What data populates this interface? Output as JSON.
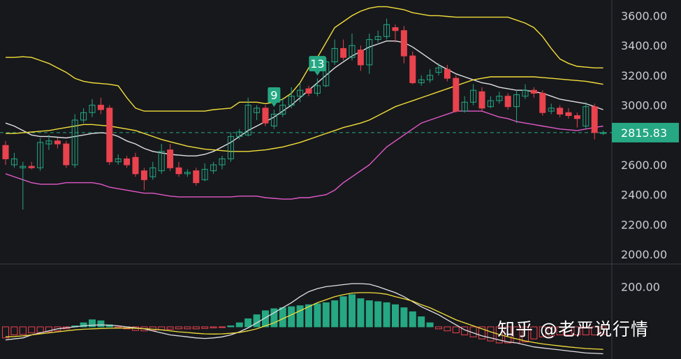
{
  "chart_data": {
    "type": "candlestick",
    "price_axis": {
      "ticks": [
        2000,
        2200,
        2400,
        2600,
        2800,
        3000,
        3200,
        3400,
        3600
      ],
      "tick_labels": [
        "2000.00",
        "2200.00",
        "2400.00",
        "2600.00",
        "2800.00",
        "3000.00",
        "3200.00",
        "3400.00",
        "3600.00"
      ],
      "range": [
        1935,
        3705
      ]
    },
    "macd_axis": {
      "tick_label": "200.00",
      "tick_value": 200,
      "range": [
        -160,
        250
      ]
    },
    "last_price": {
      "value": 2815.83,
      "label": "2815.83"
    },
    "markers": [
      {
        "label": "9",
        "bar": 31
      },
      {
        "label": "13",
        "bar": 36
      }
    ],
    "candles": [
      [
        2730,
        2640,
        2760,
        2600
      ],
      [
        2600,
        2640,
        2680,
        2580
      ],
      [
        2580,
        2590,
        2620,
        2300
      ],
      [
        2590,
        2580,
        2620,
        2570
      ],
      [
        2580,
        2750,
        2780,
        2560
      ],
      [
        2740,
        2760,
        2800,
        2700
      ],
      [
        2760,
        2740,
        2780,
        2710
      ],
      [
        2740,
        2600,
        2760,
        2580
      ],
      [
        2600,
        2900,
        2940,
        2580
      ],
      [
        2900,
        2950,
        2980,
        2880
      ],
      [
        2950,
        3000,
        3040,
        2920
      ],
      [
        3000,
        2970,
        3050,
        2940
      ],
      [
        2980,
        2620,
        3000,
        2600
      ],
      [
        2620,
        2640,
        2670,
        2600
      ],
      [
        2640,
        2600,
        2660,
        2580
      ],
      [
        2650,
        2540,
        2680,
        2520
      ],
      [
        2560,
        2500,
        2580,
        2430
      ],
      [
        2520,
        2580,
        2620,
        2500
      ],
      [
        2560,
        2690,
        2740,
        2540
      ],
      [
        2700,
        2580,
        2740,
        2560
      ],
      [
        2580,
        2540,
        2620,
        2520
      ],
      [
        2540,
        2550,
        2570,
        2520
      ],
      [
        2560,
        2480,
        2580,
        2460
      ],
      [
        2500,
        2570,
        2610,
        2490
      ],
      [
        2560,
        2600,
        2620,
        2540
      ],
      [
        2600,
        2640,
        2660,
        2570
      ],
      [
        2640,
        2790,
        2820,
        2620
      ],
      [
        2790,
        2820,
        2840,
        2770
      ],
      [
        2800,
        3000,
        3050,
        2790
      ],
      [
        2950,
        2980,
        3000,
        2900
      ],
      [
        2980,
        2880,
        3000,
        2860
      ],
      [
        2860,
        2940,
        2970,
        2840
      ],
      [
        2940,
        3000,
        3050,
        2920
      ],
      [
        3000,
        3060,
        3120,
        2980
      ],
      [
        3060,
        3100,
        3150,
        3020
      ],
      [
        3110,
        3080,
        3130,
        3060
      ],
      [
        3080,
        3130,
        3180,
        3060
      ],
      [
        3130,
        3290,
        3320,
        3120
      ],
      [
        3290,
        3380,
        3440,
        3270
      ],
      [
        3380,
        3320,
        3440,
        3300
      ],
      [
        3320,
        3400,
        3480,
        3300
      ],
      [
        3370,
        3270,
        3400,
        3230
      ],
      [
        3270,
        3440,
        3480,
        3210
      ],
      [
        3440,
        3460,
        3500,
        3420
      ],
      [
        3460,
        3540,
        3580,
        3440
      ],
      [
        3520,
        3500,
        3540,
        3420
      ],
      [
        3500,
        3330,
        3530,
        3280
      ],
      [
        3330,
        3150,
        3360,
        3140
      ],
      [
        3150,
        3170,
        3200,
        3130
      ],
      [
        3170,
        3200,
        3240,
        3150
      ],
      [
        3220,
        3250,
        3280,
        3200
      ],
      [
        3240,
        3180,
        3270,
        3160
      ],
      [
        3180,
        2960,
        3200,
        2950
      ],
      [
        2960,
        3020,
        3060,
        2950
      ],
      [
        3020,
        3100,
        3140,
        3000
      ],
      [
        3090,
        2980,
        3120,
        2960
      ],
      [
        2990,
        3030,
        3060,
        2980
      ],
      [
        3030,
        3060,
        3090,
        3010
      ],
      [
        3060,
        2990,
        3080,
        2970
      ],
      [
        2990,
        3070,
        3100,
        2880
      ],
      [
        3060,
        3100,
        3140,
        3040
      ],
      [
        3100,
        3080,
        3120,
        3050
      ],
      [
        3080,
        2950,
        3100,
        2930
      ],
      [
        2960,
        2980,
        3010,
        2940
      ],
      [
        2980,
        2940,
        3000,
        2920
      ],
      [
        2950,
        2930,
        2980,
        2910
      ],
      [
        2930,
        2910,
        2950,
        2850
      ],
      [
        2860,
        2990,
        3020,
        2840
      ],
      [
        2990,
        2816,
        3010,
        2770
      ],
      [
        2810,
        2816,
        2830,
        2800
      ]
    ],
    "series": [
      {
        "name": "ma-short",
        "color": "#e0e0e4",
        "values": [
          2880,
          2860,
          2830,
          2800,
          2790,
          2790,
          2785,
          2780,
          2790,
          2800,
          2810,
          2815,
          2810,
          2790,
          2760,
          2740,
          2710,
          2690,
          2680,
          2670,
          2665,
          2660,
          2660,
          2670,
          2690,
          2720,
          2750,
          2790,
          2830,
          2860,
          2890,
          2920,
          2960,
          3000,
          3050,
          3100,
          3150,
          3200,
          3250,
          3290,
          3330,
          3360,
          3390,
          3410,
          3430,
          3430,
          3420,
          3390,
          3350,
          3310,
          3270,
          3240,
          3210,
          3190,
          3170,
          3150,
          3140,
          3120,
          3110,
          3100,
          3100,
          3090,
          3080,
          3060,
          3040,
          3030,
          3020,
          3010,
          2990,
          2970
        ]
      },
      {
        "name": "ma-long",
        "color": "#f2de3a",
        "values": [
          2810,
          2810,
          2815,
          2820,
          2825,
          2830,
          2840,
          2850,
          2860,
          2870,
          2870,
          2865,
          2860,
          2850,
          2840,
          2830,
          2810,
          2790,
          2770,
          2755,
          2740,
          2725,
          2715,
          2705,
          2700,
          2695,
          2690,
          2690,
          2690,
          2695,
          2700,
          2710,
          2720,
          2735,
          2750,
          2770,
          2790,
          2810,
          2830,
          2850,
          2865,
          2880,
          2900,
          2930,
          2960,
          2990,
          3010,
          3030,
          3050,
          3070,
          3090,
          3110,
          3130,
          3150,
          3170,
          3180,
          3190,
          3190,
          3190,
          3190,
          3190,
          3190,
          3185,
          3180,
          3175,
          3170,
          3165,
          3160,
          3150,
          3140
        ]
      },
      {
        "name": "band-upper",
        "color": "#f2de3a",
        "values": [
          3320,
          3320,
          3325,
          3320,
          3300,
          3280,
          3250,
          3220,
          3180,
          3160,
          3150,
          3145,
          3140,
          3130,
          3050,
          2980,
          2960,
          2960,
          2960,
          2960,
          2960,
          2960,
          2960,
          2960,
          2970,
          2975,
          2980,
          3020,
          3020,
          3020,
          3010,
          3020,
          3040,
          3080,
          3150,
          3250,
          3320,
          3420,
          3520,
          3560,
          3600,
          3630,
          3650,
          3660,
          3660,
          3650,
          3640,
          3620,
          3610,
          3600,
          3600,
          3595,
          3590,
          3590,
          3590,
          3590,
          3590,
          3590,
          3590,
          3570,
          3550,
          3520,
          3460,
          3380,
          3310,
          3280,
          3260,
          3255,
          3250,
          3250
        ]
      },
      {
        "name": "band-lower",
        "color": "#e259c8",
        "values": [
          2540,
          2520,
          2500,
          2480,
          2470,
          2470,
          2470,
          2480,
          2480,
          2480,
          2480,
          2470,
          2450,
          2440,
          2430,
          2420,
          2410,
          2410,
          2400,
          2390,
          2385,
          2385,
          2385,
          2385,
          2385,
          2385,
          2385,
          2390,
          2390,
          2390,
          2380,
          2375,
          2370,
          2370,
          2380,
          2380,
          2390,
          2400,
          2430,
          2480,
          2520,
          2560,
          2600,
          2660,
          2720,
          2760,
          2800,
          2840,
          2880,
          2900,
          2920,
          2940,
          2960,
          2960,
          2960,
          2960,
          2940,
          2920,
          2910,
          2890,
          2880,
          2870,
          2860,
          2850,
          2840,
          2835,
          2830,
          2840,
          2850,
          2860
        ]
      }
    ],
    "macd": {
      "histogram": [
        -55,
        -40,
        -38,
        -30,
        -28,
        -25,
        -20,
        -10,
        5,
        20,
        35,
        30,
        10,
        -5,
        -10,
        -18,
        -20,
        -18,
        -15,
        -12,
        -10,
        -10,
        -10,
        -8,
        -5,
        -2,
        5,
        20,
        40,
        60,
        80,
        90,
        95,
        100,
        105,
        110,
        115,
        120,
        130,
        150,
        160,
        140,
        130,
        125,
        120,
        110,
        95,
        75,
        50,
        20,
        -10,
        -20,
        -30,
        -40,
        -50,
        -60,
        -70,
        -80,
        -80,
        -80,
        -75,
        -60,
        -50,
        -45,
        -40,
        -40,
        -40,
        -40,
        -40,
        -38
      ],
      "macd_line": [
        -65,
        -60,
        -55,
        -40,
        -30,
        -20,
        -10,
        -5,
        0,
        5,
        8,
        10,
        8,
        5,
        0,
        -5,
        -10,
        -20,
        -30,
        -40,
        -45,
        -50,
        -55,
        -58,
        -55,
        -50,
        -40,
        -25,
        -5,
        20,
        45,
        70,
        95,
        120,
        150,
        175,
        190,
        200,
        205,
        210,
        215,
        215,
        212,
        200,
        185,
        170,
        150,
        125,
        100,
        80,
        60,
        35,
        10,
        -15,
        -30,
        -45,
        -55,
        -65,
        -75,
        -80,
        -90,
        -100,
        -105,
        -110,
        -115,
        -120,
        -125,
        -130,
        -132,
        -134
      ],
      "signal_line": [
        -50,
        -48,
        -45,
        -40,
        -35,
        -30,
        -25,
        -20,
        -15,
        -12,
        -10,
        -8,
        -7,
        -6,
        -6,
        -7,
        -9,
        -12,
        -15,
        -20,
        -25,
        -28,
        -32,
        -35,
        -36,
        -35,
        -32,
        -28,
        -20,
        -10,
        5,
        20,
        40,
        60,
        80,
        100,
        120,
        135,
        150,
        160,
        168,
        170,
        170,
        168,
        162,
        150,
        140,
        128,
        110,
        95,
        75,
        55,
        35,
        20,
        5,
        -10,
        -25,
        -38,
        -50,
        -60,
        -70,
        -78,
        -85,
        -90,
        -95,
        -100,
        -104,
        -108,
        -110,
        -112
      ]
    }
  },
  "watermark": "知乎 @老严说行情",
  "colors": {
    "up": "#25a883",
    "down": "#e9434e",
    "background": "#17181c",
    "grid": "#3a3d44",
    "price_line": "#25a883"
  }
}
